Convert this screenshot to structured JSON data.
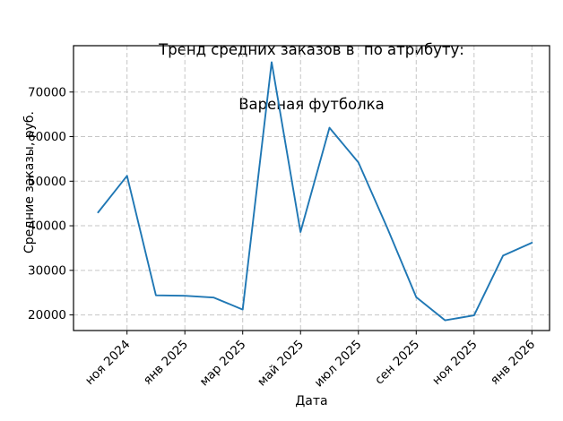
{
  "chart": {
    "title_line1": "Тренд средних заказов в  по атрибуту:",
    "title_line2": "Вареная футболка",
    "xlabel": "Дата",
    "ylabel": "Средние заказы, руб."
  },
  "chart_data": {
    "type": "line",
    "title": "Тренд средних заказов в  по атрибуту:\nВареная футболка",
    "xlabel": "Дата",
    "ylabel": "Средние заказы, руб.",
    "x": [
      "окт 2024",
      "ноя 2024",
      "дек 2024",
      "янв 2025",
      "фев 2025",
      "мар 2025",
      "апр 2025",
      "май 2025",
      "июн 2025",
      "июл 2025",
      "авг 2025",
      "сен 2025",
      "окт 2025",
      "ноя 2025",
      "дек 2025",
      "янв 2026"
    ],
    "values": [
      43000,
      51200,
      24400,
      24300,
      23900,
      21200,
      76700,
      38600,
      62000,
      54200,
      39500,
      24000,
      18800,
      19900,
      33300,
      36200
    ],
    "x_ticks": [
      {
        "index": 1,
        "label": "ноя 2024"
      },
      {
        "index": 3,
        "label": "янв 2025"
      },
      {
        "index": 5,
        "label": "мар 2025"
      },
      {
        "index": 7,
        "label": "май 2025"
      },
      {
        "index": 9,
        "label": "июл 2025"
      },
      {
        "index": 11,
        "label": "сен 2025"
      },
      {
        "index": 13,
        "label": "ноя 2025"
      },
      {
        "index": 15,
        "label": "янв 2026"
      }
    ],
    "y_ticks": [
      20000,
      30000,
      40000,
      50000,
      60000,
      70000
    ],
    "xlim": [
      -0.85,
      15.61
    ],
    "ylim": [
      16500,
      80400
    ],
    "x_tick_rotation_deg": 45,
    "grid": true,
    "grid_color": "#c6c6c6",
    "line_color": "#1f77b4",
    "legend": "none"
  }
}
